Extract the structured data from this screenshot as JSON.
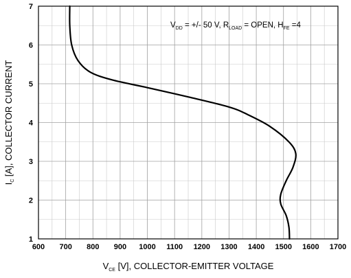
{
  "chart_data": {
    "type": "line",
    "title": "",
    "xlabel": {
      "symbol": "V",
      "subscript": "CE",
      "rest": " [V], COLLECTOR-EMITTER VOLTAGE"
    },
    "ylabel": {
      "symbol": "I",
      "subscript": "C",
      "rest": " [A], COLLECTOR CURRENT"
    },
    "xlim": [
      600,
      1700
    ],
    "ylim": [
      1,
      7
    ],
    "x_ticks": [
      600,
      700,
      800,
      900,
      1000,
      1100,
      1200,
      1300,
      1400,
      1500,
      1600,
      1700
    ],
    "y_ticks": [
      1,
      2,
      3,
      4,
      5,
      6,
      7
    ],
    "grid": true,
    "minor_grid_x_step": 50,
    "minor_grid_y_step": 0.5,
    "legend": null,
    "annotation": {
      "parts": [
        {
          "text": "V",
          "sub": false
        },
        {
          "text": "DD",
          "sub": true
        },
        {
          "text": " = +/- 50 V, R",
          "sub": false
        },
        {
          "text": "LOAD",
          "sub": true
        },
        {
          "text": " = OPEN, H",
          "sub": false
        },
        {
          "text": "FE",
          "sub": true
        },
        {
          "text": " =4",
          "sub": false
        }
      ]
    },
    "series": [
      {
        "color": "#000000",
        "points": [
          [
            715,
            7.0
          ],
          [
            715,
            6.5
          ],
          [
            722,
            6.0
          ],
          [
            745,
            5.6
          ],
          [
            790,
            5.3
          ],
          [
            870,
            5.1
          ],
          [
            1000,
            4.9
          ],
          [
            1150,
            4.66
          ],
          [
            1300,
            4.4
          ],
          [
            1370,
            4.2
          ],
          [
            1450,
            3.9
          ],
          [
            1520,
            3.5
          ],
          [
            1545,
            3.2
          ],
          [
            1535,
            2.85
          ],
          [
            1510,
            2.5
          ],
          [
            1490,
            2.15
          ],
          [
            1490,
            1.9
          ],
          [
            1510,
            1.6
          ],
          [
            1520,
            1.3
          ],
          [
            1522,
            1.0
          ]
        ]
      }
    ]
  }
}
